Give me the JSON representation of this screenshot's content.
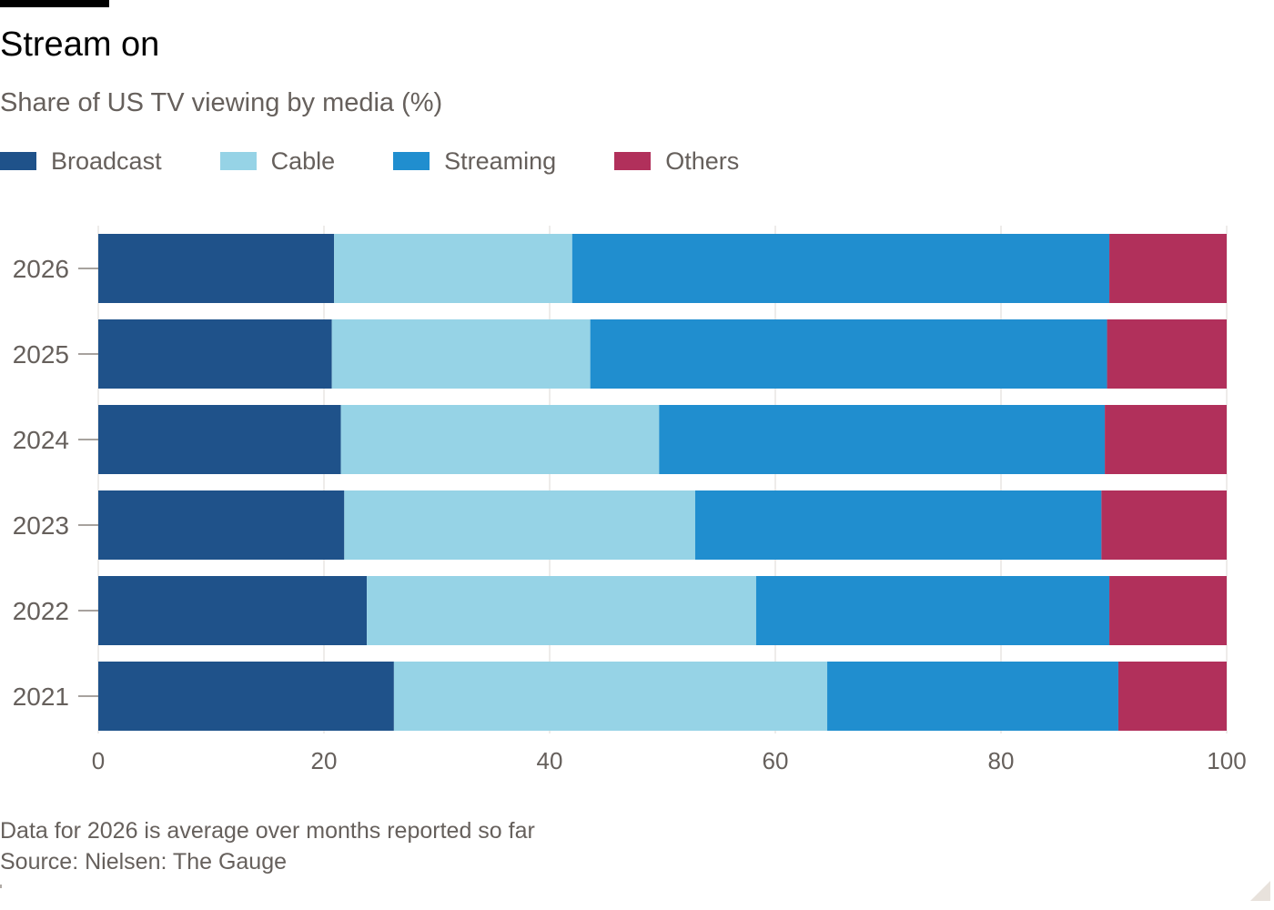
{
  "header": {
    "title": "Stream on",
    "subtitle": "Share of US TV viewing by media (%)"
  },
  "footer": {
    "note": "Data for 2026 is average over months reported so far",
    "source": "Source: Nielsen: The Gauge"
  },
  "chart_data": {
    "type": "bar",
    "orientation": "horizontal",
    "stacked": true,
    "title": "Stream on",
    "subtitle": "Share of US TV viewing by media (%)",
    "xlabel": "",
    "ylabel": "",
    "categories": [
      "2026",
      "2025",
      "2024",
      "2023",
      "2022",
      "2021"
    ],
    "series": [
      {
        "name": "Broadcast",
        "color": "#1f528a",
        "values": [
          20.9,
          20.7,
          21.5,
          21.8,
          23.8,
          26.2
        ]
      },
      {
        "name": "Cable",
        "color": "#96d3e6",
        "values": [
          21.1,
          22.9,
          28.2,
          31.1,
          34.5,
          38.4
        ]
      },
      {
        "name": "Streaming",
        "color": "#208ecf",
        "values": [
          47.6,
          45.8,
          39.5,
          36.0,
          31.3,
          25.8
        ]
      },
      {
        "name": "Others",
        "color": "#b1305b",
        "values": [
          10.4,
          10.6,
          10.8,
          11.1,
          10.4,
          9.6
        ]
      }
    ],
    "xlim": [
      0,
      100
    ],
    "xticks": [
      "0",
      "20",
      "40",
      "60",
      "80",
      "100"
    ],
    "grid": "vertical",
    "legend_position": "top-left"
  }
}
